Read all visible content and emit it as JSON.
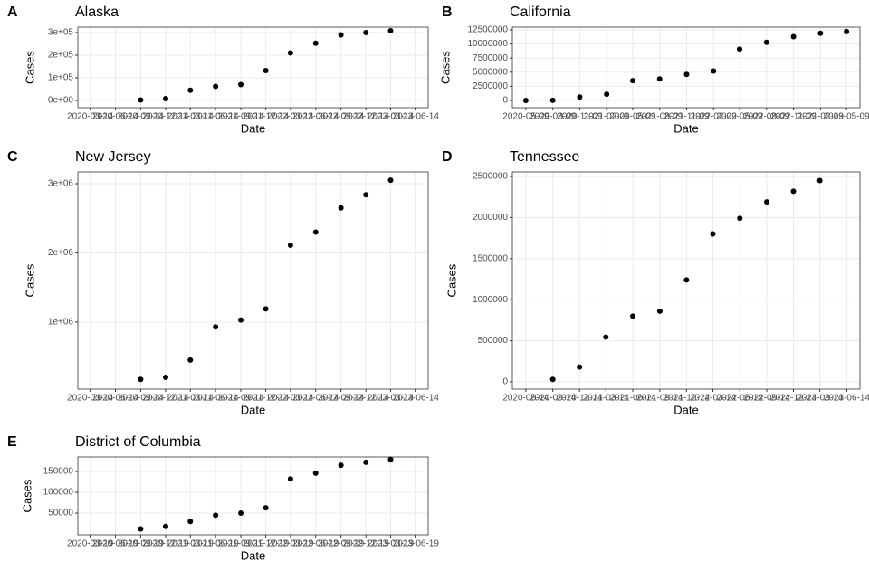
{
  "chart_data": [
    {
      "type": "scatter",
      "tag": "A",
      "title": "Alaska",
      "x_label": "Date",
      "y_label": "Cases",
      "color": "#000000",
      "grid": true,
      "x": [
        "2020-09-14",
        "2020-12-14",
        "2021-03-14",
        "2021-06-14",
        "2021-09-14",
        "2021-12-14",
        "2022-03-14",
        "2022-06-14",
        "2022-09-14",
        "2022-12-14",
        "2023-03-14"
      ],
      "values": [
        2000,
        8000,
        45000,
        62000,
        70000,
        132000,
        210000,
        253000,
        290000,
        300000,
        308000
      ],
      "xlim": [
        "2020-01-29",
        "2023-07-29"
      ],
      "xticks": [
        "2020-03-14",
        "2020-06-14",
        "2020-09-14",
        "2020-12-14",
        "2021-03-14",
        "2021-06-14",
        "2021-09-14",
        "2021-12-14",
        "2022-03-14",
        "2022-06-14",
        "2022-09-14",
        "2022-12-14",
        "2023-03-14",
        "2023-06-14"
      ],
      "ylim": [
        -32000,
        324000
      ],
      "yticks": [
        {
          "value": 0,
          "label": "0e+00"
        },
        {
          "value": 100000,
          "label": "1e+05"
        },
        {
          "value": 200000,
          "label": "2e+05"
        },
        {
          "value": 300000,
          "label": "3e+05"
        }
      ]
    },
    {
      "type": "scatter",
      "tag": "B",
      "title": "California",
      "x_label": "Date",
      "y_label": "Cases",
      "color": "#000000",
      "grid": true,
      "x": [
        "2020-05-09",
        "2020-08-09",
        "2020-11-09",
        "2021-02-09",
        "2021-05-09",
        "2021-08-09",
        "2021-11-09",
        "2022-02-09",
        "2022-05-09",
        "2022-08-09",
        "2022-11-09",
        "2023-02-09",
        "2023-05-09"
      ],
      "values": [
        5000,
        30000,
        600000,
        1100000,
        3500000,
        3800000,
        4600000,
        5200000,
        9100000,
        10300000,
        11300000,
        11900000,
        12200000
      ],
      "xlim": [
        "2020-03-24",
        "2023-06-24"
      ],
      "xticks": [
        "2020-05-09",
        "2020-08-09",
        "2020-11-09",
        "2021-02-09",
        "2021-05-09",
        "2021-08-09",
        "2021-11-09",
        "2022-02-09",
        "2022-05-09",
        "2022-08-09",
        "2022-11-09",
        "2023-02-09",
        "2023-05-09"
      ],
      "ylim": [
        -1280000,
        12980000
      ],
      "yticks": [
        0,
        2500000,
        5000000,
        7500000,
        10000000,
        12500000
      ]
    },
    {
      "type": "scatter",
      "tag": "C",
      "title": "New Jersey",
      "x_label": "Date",
      "y_label": "Cases",
      "color": "#000000",
      "grid": true,
      "x": [
        "2020-09-14",
        "2020-12-14",
        "2021-03-14",
        "2021-06-14",
        "2021-09-14",
        "2021-12-14",
        "2022-03-14",
        "2022-06-14",
        "2022-09-14",
        "2022-12-14",
        "2023-03-14"
      ],
      "values": [
        170000,
        200000,
        450000,
        930000,
        1030000,
        1190000,
        2110000,
        2300000,
        2650000,
        2840000,
        3050000
      ],
      "xlim": [
        "2020-01-29",
        "2023-07-29"
      ],
      "xticks": [
        "2020-03-14",
        "2020-06-14",
        "2020-09-14",
        "2020-12-14",
        "2021-03-14",
        "2021-06-14",
        "2021-09-14",
        "2021-12-14",
        "2022-03-14",
        "2022-06-14",
        "2022-09-14",
        "2022-12-14",
        "2023-03-14",
        "2023-06-14"
      ],
      "ylim": [
        30000,
        3170000
      ],
      "yticks": [
        {
          "value": 1000000,
          "label": "1e+06"
        },
        {
          "value": 2000000,
          "label": "2e+06"
        },
        {
          "value": 3000000,
          "label": "3e+06"
        }
      ]
    },
    {
      "type": "scatter",
      "tag": "D",
      "title": "Tennessee",
      "x_label": "Date",
      "y_label": "Cases",
      "color": "#000000",
      "grid": true,
      "x": [
        "2020-09-14",
        "2020-12-14",
        "2021-03-14",
        "2021-06-14",
        "2021-09-14",
        "2021-12-14",
        "2022-03-14",
        "2022-06-14",
        "2022-09-14",
        "2022-12-14",
        "2023-03-14"
      ],
      "values": [
        30000,
        180000,
        545000,
        800000,
        860000,
        1240000,
        1800000,
        1990000,
        2190000,
        2320000,
        2450000
      ],
      "xlim": [
        "2020-04-29",
        "2023-07-29"
      ],
      "xticks": [
        "2020-06-14",
        "2020-09-14",
        "2020-12-14",
        "2021-03-14",
        "2021-06-14",
        "2021-09-14",
        "2021-12-14",
        "2022-03-14",
        "2022-06-14",
        "2022-09-14",
        "2022-12-14",
        "2023-03-14",
        "2023-06-14"
      ],
      "ylim": [
        -88000,
        2555000
      ],
      "yticks": [
        0,
        500000,
        1000000,
        1500000,
        2000000,
        2500000
      ]
    },
    {
      "type": "scatter",
      "tag": "E",
      "title": "District of Columbia",
      "x_label": "Date",
      "y_label": "Cases",
      "color": "#000000",
      "grid": true,
      "x": [
        "2020-09-19",
        "2020-12-19",
        "2021-03-19",
        "2021-06-19",
        "2021-09-19",
        "2021-12-19",
        "2022-03-19",
        "2022-06-19",
        "2022-09-19",
        "2022-12-19",
        "2023-03-19"
      ],
      "values": [
        12000,
        18000,
        30000,
        45000,
        50000,
        63000,
        132000,
        146000,
        165000,
        172000,
        179000
      ],
      "xlim": [
        "2020-02-03",
        "2023-08-03"
      ],
      "xticks": [
        "2020-03-19",
        "2020-06-19",
        "2020-09-19",
        "2020-12-19",
        "2021-03-19",
        "2021-06-19",
        "2021-09-19",
        "2021-12-19",
        "2022-03-19",
        "2022-06-19",
        "2022-09-19",
        "2022-12-19",
        "2023-03-19",
        "2023-06-19"
      ],
      "ylim": [
        -2000,
        184800
      ],
      "yticks": [
        50000,
        100000,
        150000
      ]
    }
  ]
}
